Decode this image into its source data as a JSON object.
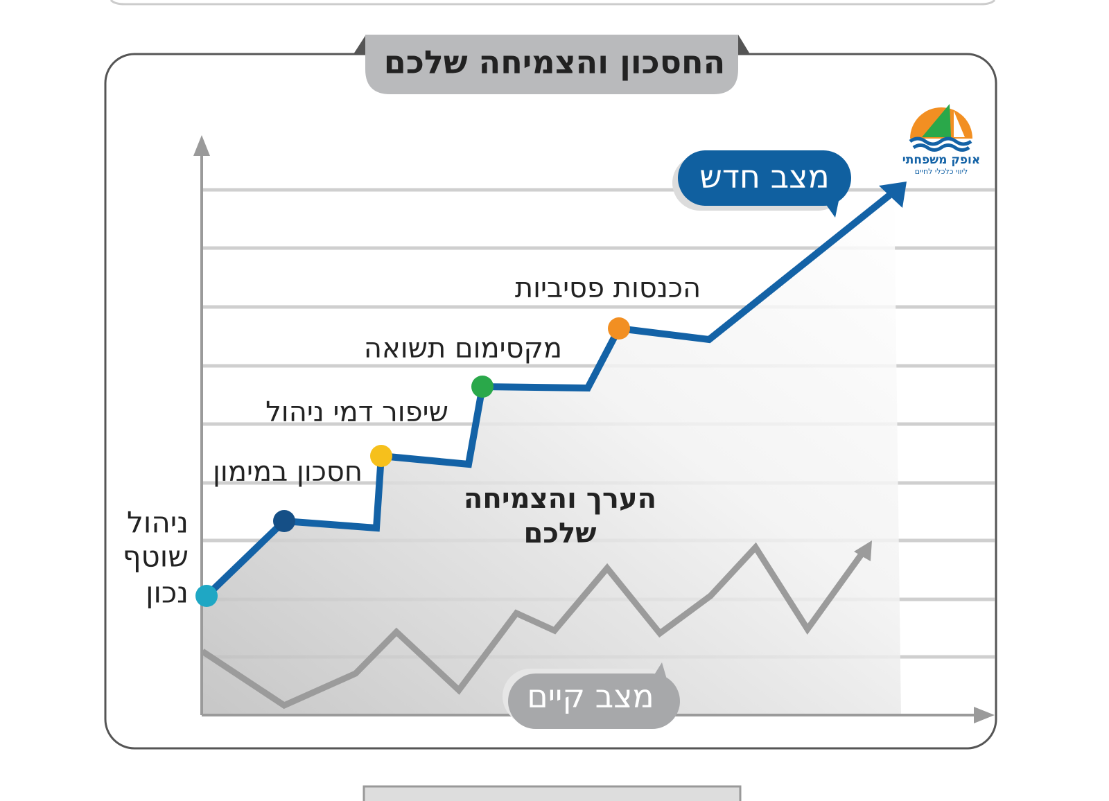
{
  "title": "החסכון והצמיחה שלכם",
  "logo": {
    "name": "אופק משפחתי",
    "tagline": "ליווי כלכלי לחיים"
  },
  "callouts": {
    "new_state": "מצב חדש",
    "current_state": "מצב קיים"
  },
  "start_label": [
    "ניהול",
    "שוטף",
    "נכון"
  ],
  "milestones": [
    "חסכון במימון",
    "שיפור דמי ניהול",
    "מקסימום תשואה",
    "הכנסות פסיביות"
  ],
  "center_label": [
    "הערך והצמיחה",
    "שלכם"
  ]
}
